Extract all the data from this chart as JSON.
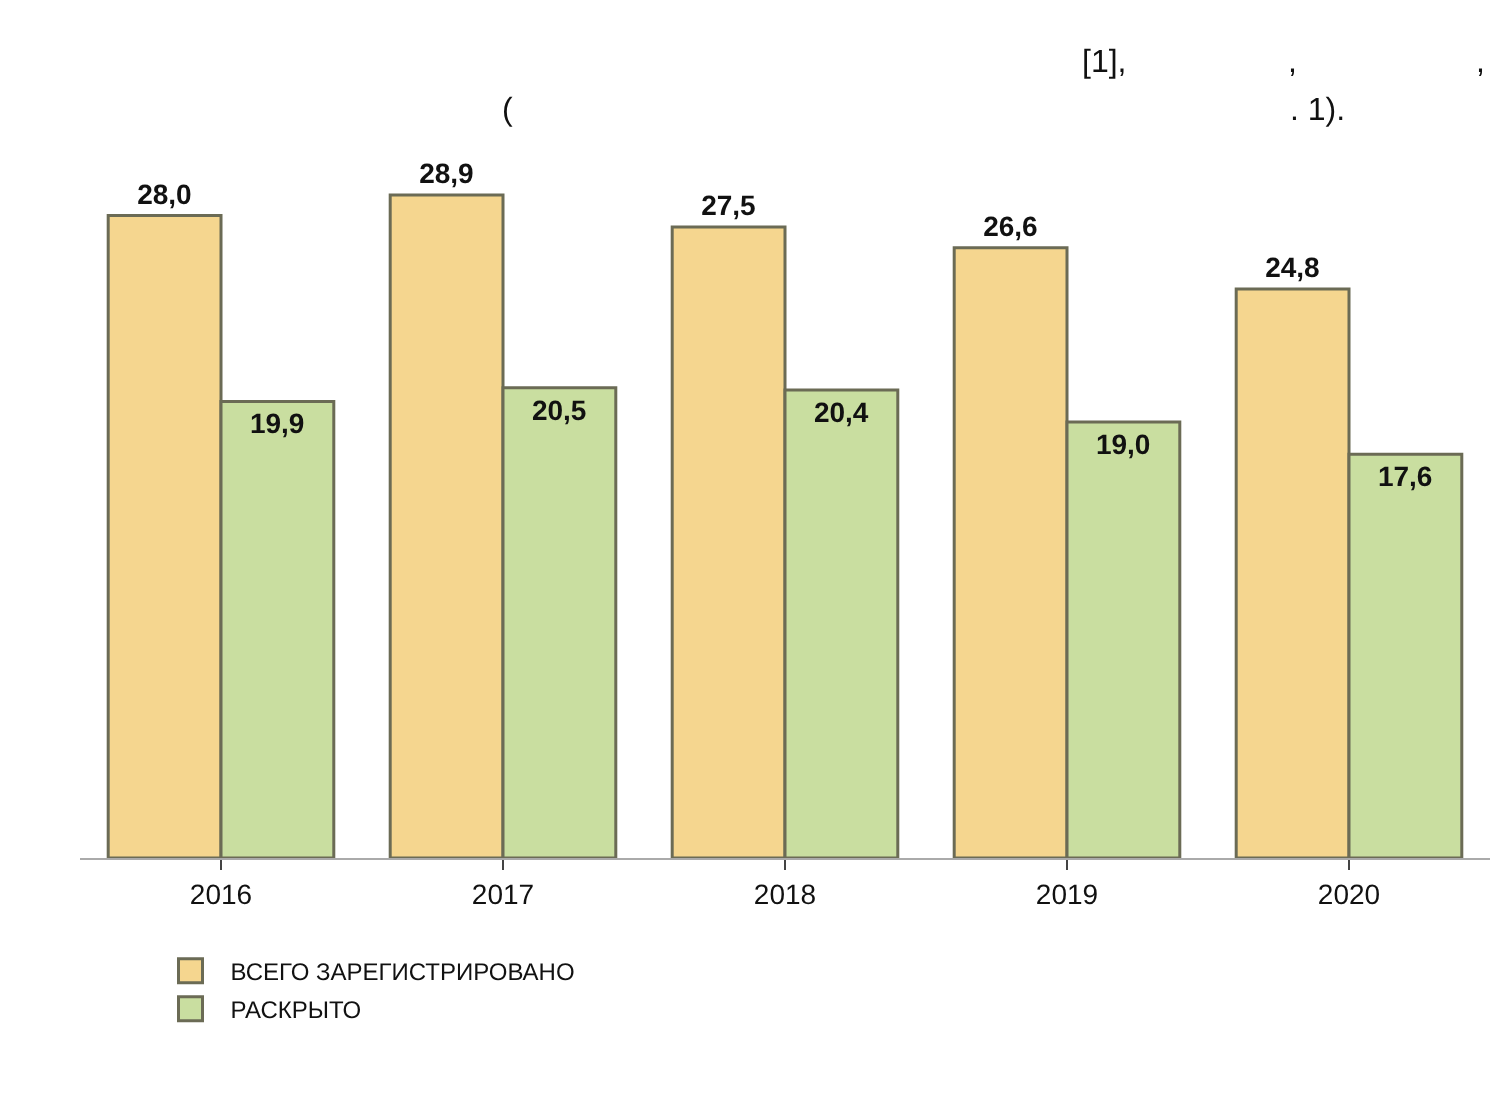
{
  "chart_data": {
    "type": "bar",
    "categories": [
      "2016",
      "2017",
      "2018",
      "2019",
      "2020"
    ],
    "series": [
      {
        "name": "ВСЕГО ЗАРЕГИСТРИРОВАНО",
        "color": "#f5d68f",
        "values": [
          28.0,
          28.9,
          27.5,
          26.6,
          24.8
        ],
        "value_labels": [
          "28,0",
          "28,9",
          "27,5",
          "26,6",
          "24,8"
        ]
      },
      {
        "name": "РАСКРЫТО",
        "color": "#c9dea0",
        "values": [
          19.9,
          20.5,
          20.4,
          19.0,
          17.6
        ],
        "value_labels": [
          "19,9",
          "20,5",
          "20,4",
          "19,0",
          "17,6"
        ]
      }
    ],
    "annotations": [
      "[1],",
      ",",
      ",",
      "(",
      ". 1)."
    ],
    "legend": "bottom",
    "tick_labels": "x"
  }
}
